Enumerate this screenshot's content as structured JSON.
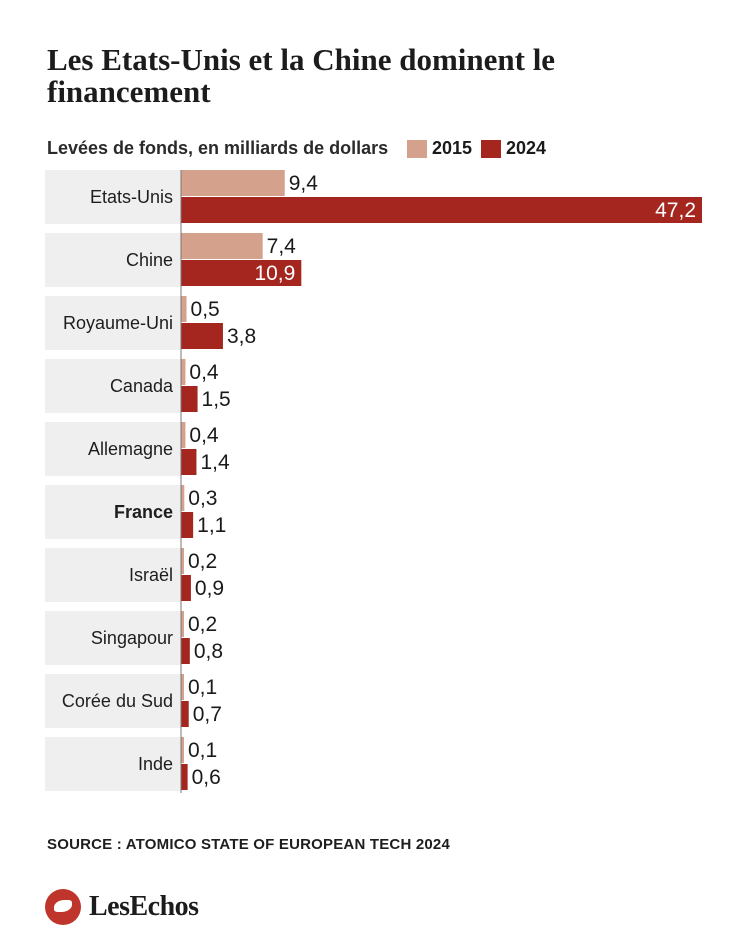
{
  "title": "Les Etats-Unis et la Chine dominent le financement",
  "source": "SOURCE : ATOMICO STATE OF EUROPEAN TECH 2024",
  "brand": "LesEchos",
  "colors": {
    "s2015": "#d4a18c",
    "s2024": "#a4261f",
    "band": "#efefef"
  },
  "chart_data": {
    "type": "bar",
    "orientation": "horizontal",
    "title": "Les Etats-Unis et la Chine dominent le financement",
    "subtitle": "Levées de fonds, en milliards de dollars",
    "categories": [
      "Etats-Unis",
      "Chine",
      "Royaume-Uni",
      "Canada",
      "Allemagne",
      "France",
      "Israël",
      "Singapour",
      "Corée du Sud",
      "Inde"
    ],
    "highlight": "France",
    "series": [
      {
        "name": "2015",
        "values": [
          9.4,
          7.4,
          0.5,
          0.4,
          0.4,
          0.3,
          0.2,
          0.2,
          0.1,
          0.1
        ],
        "labels": [
          "9,4",
          "7,4",
          "0,5",
          "0,4",
          "0,4",
          "0,3",
          "0,2",
          "0,2",
          "0,1",
          "0,1"
        ]
      },
      {
        "name": "2024",
        "values": [
          47.2,
          10.9,
          3.8,
          1.5,
          1.4,
          1.1,
          0.9,
          0.8,
          0.7,
          0.6
        ],
        "labels": [
          "47,2",
          "10,9",
          "3,8",
          "1,5",
          "1,4",
          "1,1",
          "0,9",
          "0,8",
          "0,7",
          "0,6"
        ]
      }
    ],
    "xlim": [
      0,
      47.2
    ],
    "legend": "top",
    "grid": false
  }
}
